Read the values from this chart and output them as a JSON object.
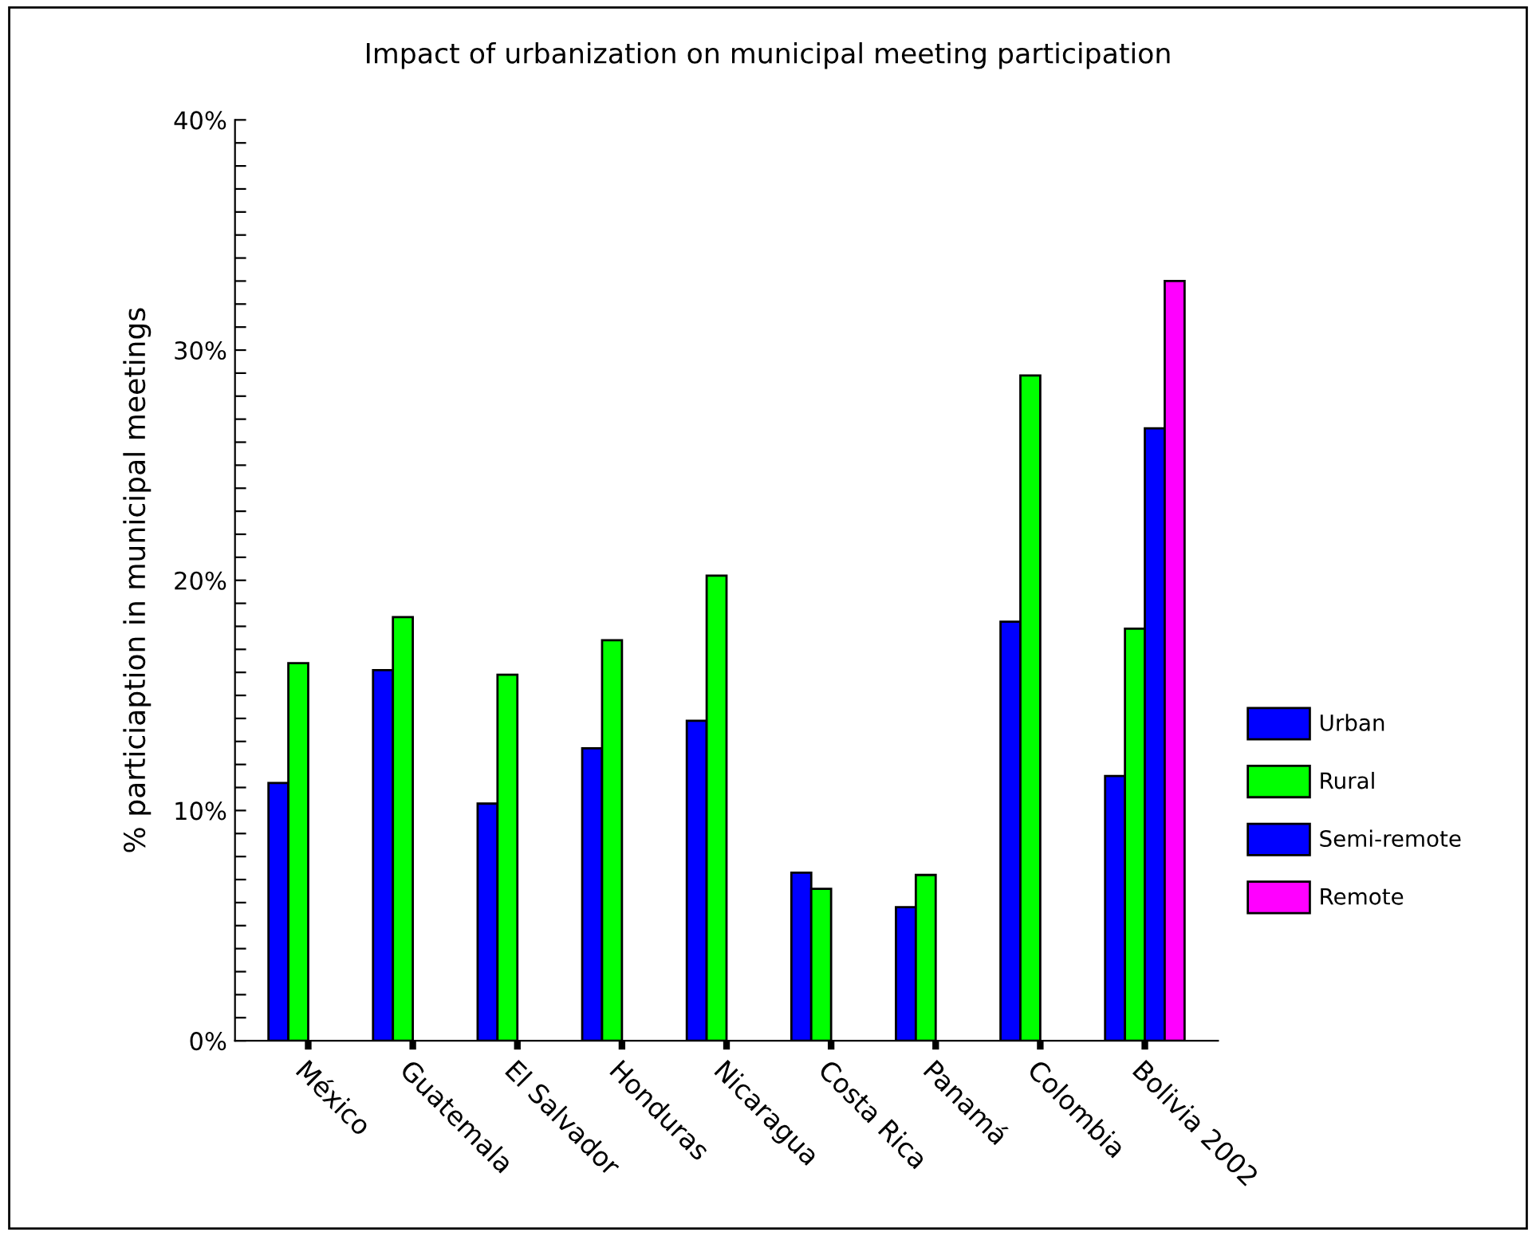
{
  "chart_data": {
    "type": "bar",
    "title": "Impact of urbanization on municipal meeting participation",
    "ylabel": "% particiaption in municipal meetings",
    "categories": [
      "México",
      "Guatemala",
      "El Salvador",
      "Honduras",
      "Nicaragua",
      "Costa Rica",
      "Panamá",
      "Colombia",
      "Bolivia 2002"
    ],
    "series": [
      {
        "name": "Urban",
        "color": "#0000ff",
        "values": [
          11.2,
          16.1,
          10.3,
          12.7,
          13.9,
          7.3,
          5.8,
          18.2,
          11.5
        ]
      },
      {
        "name": "Rural",
        "color": "#00ff00",
        "values": [
          16.4,
          18.4,
          15.9,
          17.4,
          20.2,
          6.6,
          7.2,
          28.9,
          17.9
        ]
      },
      {
        "name": "Semi-remote",
        "color": "#0000ff",
        "values": [
          null,
          null,
          null,
          null,
          null,
          null,
          null,
          null,
          26.6
        ]
      },
      {
        "name": "Remote",
        "color": "#ff00ff",
        "values": [
          null,
          null,
          null,
          null,
          null,
          null,
          null,
          null,
          33.0
        ]
      }
    ],
    "ylim": [
      0,
      40
    ],
    "yticks": [
      {
        "value": 0,
        "label": "0%"
      },
      {
        "value": 1,
        "label": null
      },
      {
        "value": 2,
        "label": null
      },
      {
        "value": 3,
        "label": null
      },
      {
        "value": 4,
        "label": null
      },
      {
        "value": 5,
        "label": null
      },
      {
        "value": 6,
        "label": null
      },
      {
        "value": 7,
        "label": null
      },
      {
        "value": 8,
        "label": null
      },
      {
        "value": 9,
        "label": null
      },
      {
        "value": 10,
        "label": "10%"
      },
      {
        "value": 11,
        "label": null
      },
      {
        "value": 12,
        "label": null
      },
      {
        "value": 13,
        "label": null
      },
      {
        "value": 14,
        "label": null
      },
      {
        "value": 15,
        "label": null
      },
      {
        "value": 16,
        "label": null
      },
      {
        "value": 17,
        "label": null
      },
      {
        "value": 18,
        "label": null
      },
      {
        "value": 19,
        "label": null
      },
      {
        "value": 20,
        "label": "20%"
      },
      {
        "value": 21,
        "label": null
      },
      {
        "value": 22,
        "label": null
      },
      {
        "value": 23,
        "label": null
      },
      {
        "value": 24,
        "label": null
      },
      {
        "value": 25,
        "label": null
      },
      {
        "value": 26,
        "label": null
      },
      {
        "value": 27,
        "label": null
      },
      {
        "value": 28,
        "label": null
      },
      {
        "value": 29,
        "label": null
      },
      {
        "value": 30,
        "label": "30%"
      },
      {
        "value": 31,
        "label": null
      },
      {
        "value": 32,
        "label": null
      },
      {
        "value": 33,
        "label": null
      },
      {
        "value": 34,
        "label": null
      },
      {
        "value": 35,
        "label": null
      },
      {
        "value": 36,
        "label": null
      },
      {
        "value": 37,
        "label": null
      },
      {
        "value": 38,
        "label": null
      },
      {
        "value": 39,
        "label": null
      },
      {
        "value": 40,
        "label": "40%"
      }
    ],
    "grid": false,
    "legend": "right"
  }
}
